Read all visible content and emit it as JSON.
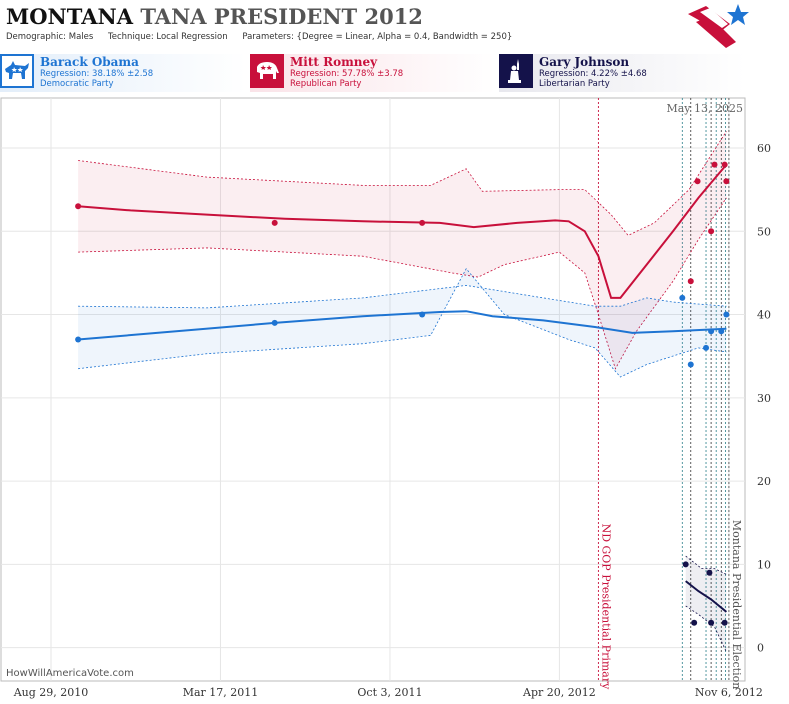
{
  "header": {
    "title_state": "MONTANA",
    "title_rest": "TANA PRESIDENT 2012",
    "demographic_label": "Demographic:",
    "demographic_value": "Males",
    "technique_label": "Technique:",
    "technique_value": "Local Regression",
    "parameters_label": "Parameters:",
    "parameters_value": "{Degree = Linear, Alpha = 0.4, Bandwidth = 250}",
    "logo_icon": "star-flag-logo-icon"
  },
  "candidates": [
    {
      "name": "Barack Obama",
      "regression": "Regression: 38.18% ±2.58",
      "party": "Democratic Party",
      "color": "#1e74d2",
      "icon": "donkey-icon",
      "bg": "#e3eefa"
    },
    {
      "name": "Mitt Romney",
      "regression": "Regression: 57.78% ±3.78",
      "party": "Republican Party",
      "color": "#c8103b",
      "icon": "elephant-icon",
      "bg": "#fae3e8"
    },
    {
      "name": "Gary Johnson",
      "regression": "Regression: 4.22% ±4.68",
      "party": "Libertarian Party",
      "color": "#14124a",
      "icon": "statue-of-liberty-icon",
      "bg": "#e8e8ee"
    }
  ],
  "watermark": "HowWillAmericaVote.com",
  "chart_data": {
    "type": "line",
    "date_label": "May 13, 2025",
    "x_tick_labels": [
      "Aug 29, 2010",
      "Mar 17, 2011",
      "Oct 3, 2011",
      "Apr 20, 2012",
      "Nov 6, 2012"
    ],
    "x_ticks": [
      "2010-08-29",
      "2011-03-17",
      "2011-10-03",
      "2012-04-20",
      "2012-11-06"
    ],
    "xlim": [
      "2010-07-01",
      "2012-11-25"
    ],
    "y_ticks": [
      0,
      10,
      20,
      30,
      40,
      50,
      60
    ],
    "ylim": [
      -4,
      66
    ],
    "grid": true,
    "annotations": [
      {
        "date": "2012-06-05",
        "label": "ND GOP Presidential Primary",
        "color": "#c8103b"
      },
      {
        "date": "2012-11-06",
        "label": "Montana Presidential Election",
        "color": "#555555"
      }
    ],
    "poll_date_lines": [
      "2012-09-12",
      "2012-09-22",
      "2012-10-10",
      "2012-10-16",
      "2012-10-22",
      "2012-10-28",
      "2012-11-02"
    ],
    "series": [
      {
        "name": "Mitt Romney",
        "color": "#c8103b",
        "points": [
          [
            "2010-09-30",
            53
          ],
          [
            "2011-05-20",
            51
          ],
          [
            "2011-11-10",
            51
          ],
          [
            "2012-09-22",
            44
          ],
          [
            "2012-09-30",
            56
          ],
          [
            "2012-10-16",
            50
          ],
          [
            "2012-10-20",
            58
          ],
          [
            "2012-11-01",
            58
          ],
          [
            "2012-11-03",
            56
          ]
        ],
        "trend": [
          [
            "2010-09-30",
            53
          ],
          [
            "2010-12-01",
            52.5
          ],
          [
            "2011-03-01",
            52
          ],
          [
            "2011-06-01",
            51.5
          ],
          [
            "2011-09-01",
            51.2
          ],
          [
            "2011-12-01",
            51
          ],
          [
            "2012-01-10",
            50.5
          ],
          [
            "2012-03-01",
            51
          ],
          [
            "2012-04-15",
            51.3
          ],
          [
            "2012-05-01",
            51.2
          ],
          [
            "2012-05-20",
            50
          ],
          [
            "2012-06-05",
            47
          ],
          [
            "2012-06-20",
            42
          ],
          [
            "2012-07-01",
            42
          ],
          [
            "2012-08-01",
            46
          ],
          [
            "2012-09-01",
            50
          ],
          [
            "2012-10-01",
            54
          ],
          [
            "2012-11-03",
            58
          ]
        ],
        "upper": [
          [
            "2010-09-30",
            58.5
          ],
          [
            "2011-03-01",
            56.5
          ],
          [
            "2011-09-01",
            55.5
          ],
          [
            "2011-11-20",
            55.5
          ],
          [
            "2012-01-01",
            57.5
          ],
          [
            "2012-01-20",
            54.8
          ],
          [
            "2012-04-20",
            55
          ],
          [
            "2012-05-20",
            55
          ],
          [
            "2012-06-20",
            52
          ],
          [
            "2012-07-10",
            49.5
          ],
          [
            "2012-08-10",
            51
          ],
          [
            "2012-09-20",
            55
          ],
          [
            "2012-11-03",
            62
          ]
        ],
        "lower": [
          [
            "2010-09-30",
            47.5
          ],
          [
            "2011-03-01",
            48
          ],
          [
            "2011-09-01",
            47
          ],
          [
            "2011-12-15",
            45
          ],
          [
            "2012-01-15",
            44.5
          ],
          [
            "2012-02-15",
            46
          ],
          [
            "2012-04-20",
            47.5
          ],
          [
            "2012-05-20",
            45
          ],
          [
            "2012-06-05",
            40
          ],
          [
            "2012-06-25",
            33.5
          ],
          [
            "2012-07-20",
            38
          ],
          [
            "2012-09-01",
            44
          ],
          [
            "2012-10-01",
            49
          ],
          [
            "2012-11-03",
            54
          ]
        ]
      },
      {
        "name": "Barack Obama",
        "color": "#1e74d2",
        "points": [
          [
            "2010-09-30",
            37
          ],
          [
            "2011-05-20",
            39
          ],
          [
            "2011-11-10",
            40
          ],
          [
            "2012-09-12",
            42
          ],
          [
            "2012-09-22",
            34
          ],
          [
            "2012-10-10",
            36
          ],
          [
            "2012-10-16",
            38
          ],
          [
            "2012-10-28",
            38
          ],
          [
            "2012-11-03",
            40
          ]
        ],
        "trend": [
          [
            "2010-09-30",
            37
          ],
          [
            "2011-01-01",
            37.8
          ],
          [
            "2011-05-20",
            39
          ],
          [
            "2011-09-01",
            39.8
          ],
          [
            "2011-12-01",
            40.3
          ],
          [
            "2012-01-01",
            40.4
          ],
          [
            "2012-02-01",
            39.8
          ],
          [
            "2012-04-01",
            39.3
          ],
          [
            "2012-06-01",
            38.5
          ],
          [
            "2012-07-15",
            37.8
          ],
          [
            "2012-09-01",
            38
          ],
          [
            "2012-11-03",
            38.3
          ]
        ],
        "upper": [
          [
            "2010-09-30",
            41
          ],
          [
            "2011-03-01",
            40.8
          ],
          [
            "2011-09-01",
            42
          ],
          [
            "2012-01-01",
            43.5
          ],
          [
            "2012-04-01",
            42
          ],
          [
            "2012-06-01",
            41
          ],
          [
            "2012-07-01",
            41
          ],
          [
            "2012-08-01",
            42
          ],
          [
            "2012-09-01",
            41.5
          ],
          [
            "2012-11-03",
            41
          ]
        ],
        "lower": [
          [
            "2010-09-30",
            33.5
          ],
          [
            "2011-03-01",
            35.3
          ],
          [
            "2011-09-01",
            36.5
          ],
          [
            "2011-11-20",
            37.5
          ],
          [
            "2012-01-01",
            45.5
          ],
          [
            "2012-02-15",
            40
          ],
          [
            "2012-05-01",
            37
          ],
          [
            "2012-06-01",
            36
          ],
          [
            "2012-07-01",
            32.5
          ],
          [
            "2012-08-01",
            34
          ],
          [
            "2012-10-01",
            36
          ],
          [
            "2012-11-03",
            35.5
          ]
        ]
      },
      {
        "name": "Gary Johnson",
        "color": "#14124a",
        "points": [
          [
            "2012-09-16",
            10
          ],
          [
            "2012-09-26",
            3
          ],
          [
            "2012-10-14",
            9
          ],
          [
            "2012-10-16",
            3
          ],
          [
            "2012-11-01",
            3
          ]
        ],
        "trend": [
          [
            "2012-09-16",
            8
          ],
          [
            "2012-10-01",
            6.8
          ],
          [
            "2012-10-16",
            5.8
          ],
          [
            "2012-11-03",
            4.3
          ]
        ],
        "upper": [
          [
            "2012-09-16",
            11
          ],
          [
            "2012-10-05",
            9.5
          ],
          [
            "2012-10-20",
            9.5
          ],
          [
            "2012-11-03",
            8.8
          ]
        ],
        "lower": [
          [
            "2012-09-16",
            5
          ],
          [
            "2012-10-01",
            4
          ],
          [
            "2012-10-20",
            2.5
          ],
          [
            "2012-11-03",
            -0.5
          ]
        ]
      }
    ]
  }
}
